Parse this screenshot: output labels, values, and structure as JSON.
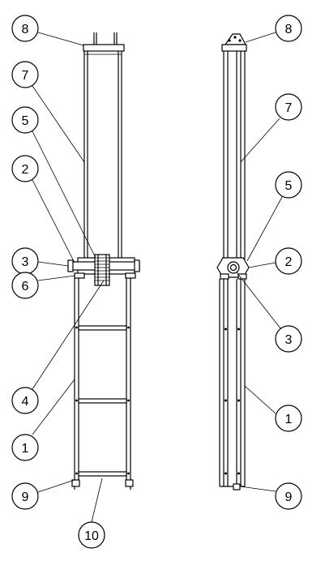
{
  "callouts": [
    {
      "id": "c8-left",
      "label": "8"
    },
    {
      "id": "c7-left",
      "label": "7"
    },
    {
      "id": "c5-left",
      "label": "5"
    },
    {
      "id": "c2-left",
      "label": "2"
    },
    {
      "id": "c3-left",
      "label": "3"
    },
    {
      "id": "c6-left",
      "label": "6"
    },
    {
      "id": "c4-left",
      "label": "4"
    },
    {
      "id": "c1-left",
      "label": "1"
    },
    {
      "id": "c9-left",
      "label": "9"
    },
    {
      "id": "c10-left",
      "label": "10"
    },
    {
      "id": "c8-right",
      "label": "8"
    },
    {
      "id": "c7-right",
      "label": "7"
    },
    {
      "id": "c5-right",
      "label": "5"
    },
    {
      "id": "c2-right",
      "label": "2"
    },
    {
      "id": "c3-right",
      "label": "3"
    },
    {
      "id": "c1-right",
      "label": "1"
    },
    {
      "id": "c9-right",
      "label": "9"
    }
  ]
}
